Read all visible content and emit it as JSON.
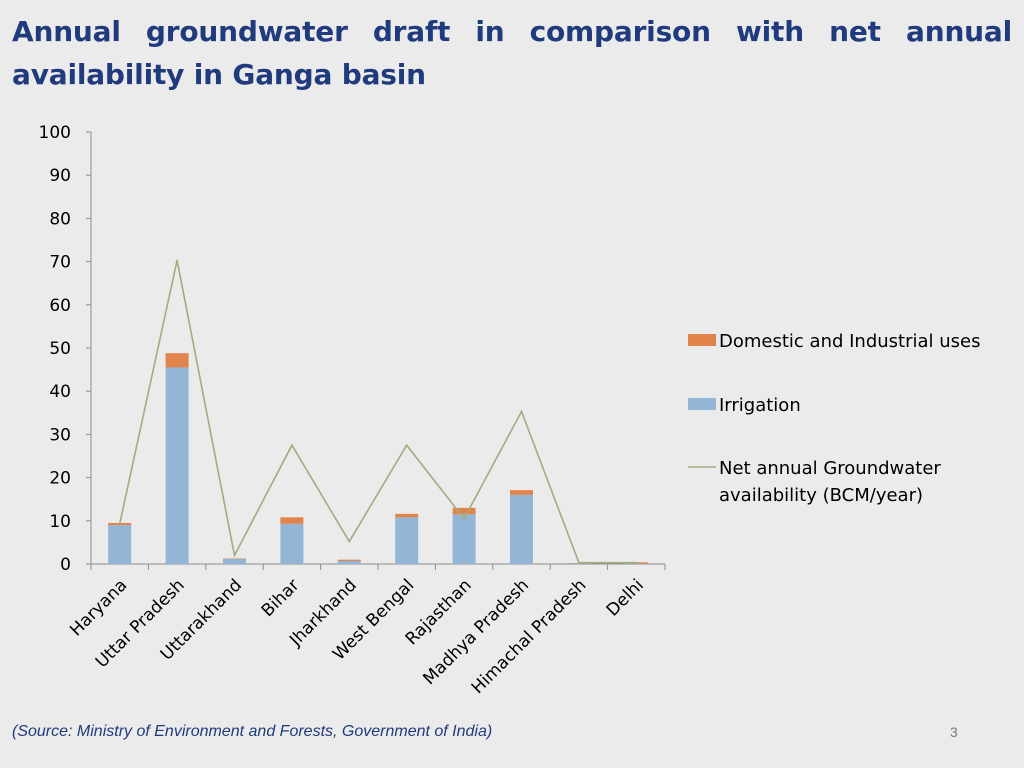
{
  "slide": {
    "title": "Annual groundwater draft in comparison with net annual availability in Ganga basin",
    "source": "(Source:  Ministry of Environment and Forests, Government of India)",
    "page_number": "3"
  },
  "chart_data": {
    "type": "bar",
    "stacked": true,
    "categories": [
      "Haryana",
      "Uttar Pradesh",
      "Uttarakhand",
      "Bihar",
      "Jharkhand",
      "West Bengal",
      "Rajasthan",
      "Madhya Pradesh",
      "Himachal Pradesh",
      "Delhi"
    ],
    "series": [
      {
        "name": "Irrigation",
        "kind": "bar",
        "color": "#93b6d6",
        "values": [
          9.0,
          45.5,
          1.2,
          9.3,
          0.7,
          10.8,
          11.5,
          16.0,
          0.1,
          0.1
        ]
      },
      {
        "name": "Domestic and Industrial uses",
        "kind": "bar",
        "color": "#e0844c",
        "values": [
          0.5,
          3.3,
          0.1,
          1.5,
          0.3,
          0.8,
          1.5,
          1.1,
          0.1,
          0.3
        ]
      },
      {
        "name": "Net annual Groundwater availability (BCM/year)",
        "kind": "line",
        "color": "#a3ab80",
        "values": [
          9.3,
          70.3,
          2.0,
          27.5,
          5.2,
          27.5,
          10.5,
          35.3,
          0.3,
          0.3
        ]
      }
    ],
    "legend_order": [
      "Domestic and Industrial uses",
      "Irrigation",
      "Net annual Groundwater availability (BCM/year)"
    ],
    "legend_position": "right",
    "ylim": [
      0,
      100
    ],
    "yticks": [
      "0",
      "10",
      "20",
      "30",
      "40",
      "50",
      "60",
      "70",
      "80",
      "90",
      "100"
    ],
    "grid": false,
    "title": "",
    "xlabel": "",
    "ylabel": ""
  }
}
